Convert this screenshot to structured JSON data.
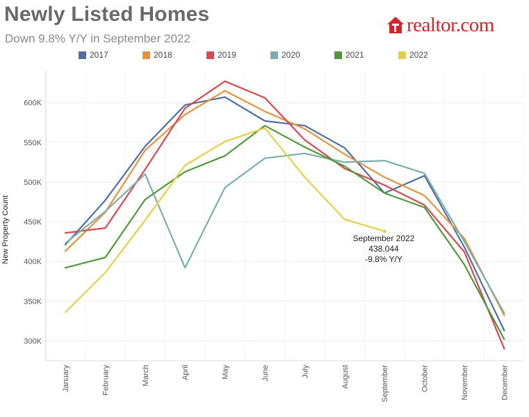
{
  "header": {
    "title": "Newly Listed Homes",
    "subtitle": "Down 9.8% Y/Y in September 2022"
  },
  "logo": {
    "text": "realtor.com",
    "icon": "house-icon",
    "color": "#d92228"
  },
  "chart_data": {
    "type": "line",
    "title": "Newly Listed Homes",
    "subtitle": "Down 9.8% Y/Y in September 2022",
    "xlabel": "",
    "ylabel": "New Property Count",
    "categories": [
      "January",
      "February",
      "March",
      "April",
      "May",
      "June",
      "July",
      "August",
      "September",
      "October",
      "November",
      "December"
    ],
    "ylim": [
      275000,
      640000
    ],
    "yticks": [
      300000,
      350000,
      400000,
      450000,
      500000,
      550000,
      600000
    ],
    "ytick_labels": [
      "300K",
      "350K",
      "400K",
      "450K",
      "500K",
      "550K",
      "600K"
    ],
    "grid": true,
    "legend_position": "top",
    "series": [
      {
        "name": "2017",
        "color": "#4e6fa5",
        "values": [
          421000,
          477000,
          545000,
          597000,
          607000,
          577000,
          571000,
          543000,
          486000,
          508000,
          418000,
          313000
        ]
      },
      {
        "name": "2018",
        "color": "#e8913a",
        "values": [
          413000,
          462000,
          540000,
          585000,
          615000,
          589000,
          567000,
          535000,
          506000,
          483000,
          429000,
          332000
        ]
      },
      {
        "name": "2019",
        "color": "#d9474f",
        "values": [
          436000,
          442000,
          516000,
          593000,
          627000,
          606000,
          553000,
          517000,
          496000,
          471000,
          412000,
          290000
        ]
      },
      {
        "name": "2020",
        "color": "#7aaeab",
        "values": [
          423000,
          463000,
          510000,
          392000,
          493000,
          530000,
          536000,
          525000,
          527000,
          511000,
          425000,
          335000
        ]
      },
      {
        "name": "2021",
        "color": "#4e9a3a",
        "values": [
          392000,
          405000,
          478000,
          513000,
          533000,
          571000,
          544000,
          520000,
          486000,
          468000,
          396000,
          302000
        ]
      },
      {
        "name": "2022",
        "color": "#e8cd47",
        "values": [
          336000,
          386000,
          452000,
          521000,
          551000,
          568000,
          506000,
          453000,
          438044,
          null,
          null,
          null
        ]
      }
    ],
    "annotation": {
      "label": "September 2022",
      "value_text": "438,044",
      "change_text": "-9.8% Y/Y",
      "category": "September",
      "value": 438044
    }
  }
}
